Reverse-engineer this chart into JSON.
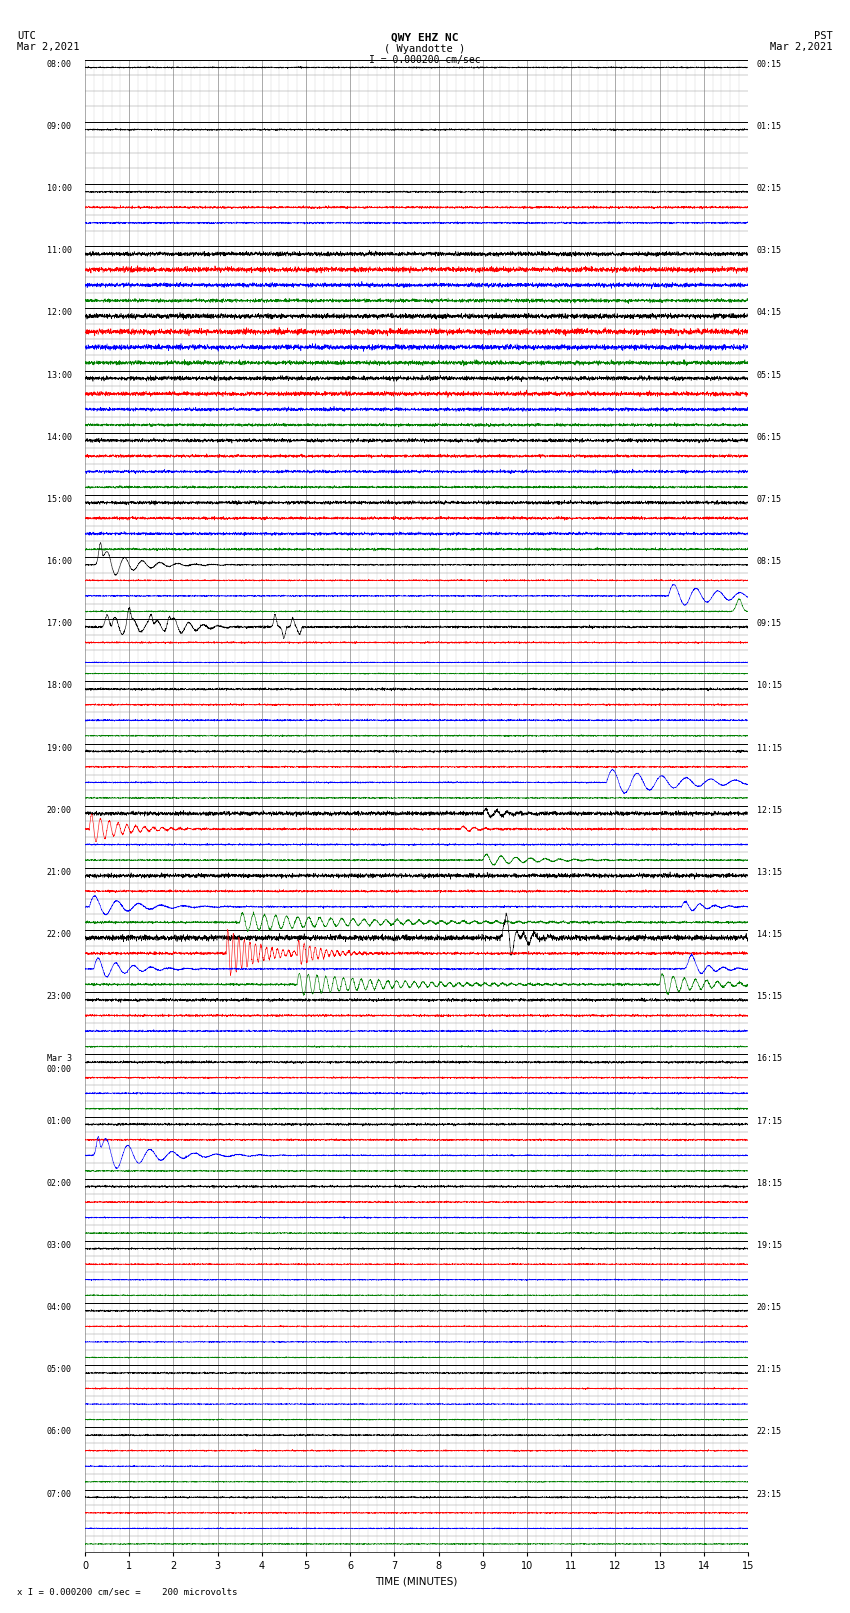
{
  "title_line1": "QWY EHZ NC",
  "title_line2": "( Wyandotte )",
  "title_scale": "I = 0.000200 cm/sec",
  "bottom_note": "x I = 0.000200 cm/sec =    200 microvolts",
  "xlabel": "TIME (MINUTES)",
  "xticks": [
    0,
    1,
    2,
    3,
    4,
    5,
    6,
    7,
    8,
    9,
    10,
    11,
    12,
    13,
    14,
    15
  ],
  "xlim": [
    0,
    15
  ],
  "num_hours": 24,
  "left_times_utc": [
    "08:00",
    "09:00",
    "10:00",
    "11:00",
    "12:00",
    "13:00",
    "14:00",
    "15:00",
    "16:00",
    "17:00",
    "18:00",
    "19:00",
    "20:00",
    "21:00",
    "22:00",
    "23:00",
    "Mar 3\n00:00",
    "01:00",
    "02:00",
    "03:00",
    "04:00",
    "05:00",
    "06:00",
    "07:00"
  ],
  "right_times_pst": [
    "00:15",
    "01:15",
    "02:15",
    "03:15",
    "04:15",
    "05:15",
    "06:15",
    "07:15",
    "08:15",
    "09:15",
    "10:15",
    "11:15",
    "12:15",
    "13:15",
    "14:15",
    "15:15",
    "16:15",
    "17:15",
    "18:15",
    "19:15",
    "20:15",
    "21:15",
    "22:15",
    "23:15"
  ],
  "bg_color": "#ffffff",
  "grid_color": "#888888",
  "minor_grid_color": "#bbbbbb"
}
